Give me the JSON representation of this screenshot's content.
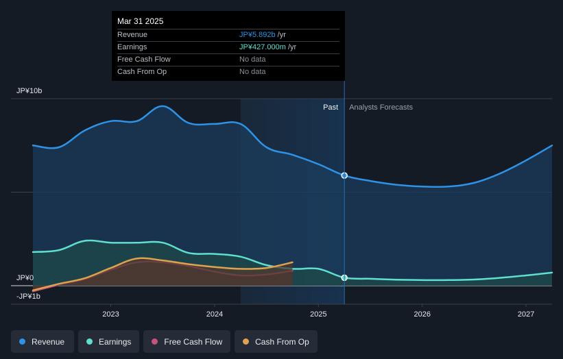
{
  "chart_data": {
    "type": "area",
    "title": "",
    "x_range": [
      2022.25,
      2027.25
    ],
    "ylim": [
      -1,
      10
    ],
    "y_tick_labels": [
      {
        "value": 10,
        "label": "JP¥10b"
      },
      {
        "value": 0,
        "label": "JP¥0"
      },
      {
        "value": -1,
        "label": "-JP¥1b"
      }
    ],
    "x_ticks": [
      {
        "value": 2023,
        "label": "2023"
      },
      {
        "value": 2024,
        "label": "2024"
      },
      {
        "value": 2025,
        "label": "2025"
      },
      {
        "value": 2026,
        "label": "2026"
      },
      {
        "value": 2027,
        "label": "2027"
      }
    ],
    "past_label": "Past",
    "forecast_label": "Analysts Forecasts",
    "highlight_start": 2024.25,
    "divider_x": 2025.25,
    "series": [
      {
        "name": "Revenue",
        "color": "#2e93e6",
        "fill": "#1b3c5c",
        "marker_at": 2025.25,
        "points": [
          [
            2022.25,
            7.5
          ],
          [
            2022.5,
            7.4
          ],
          [
            2022.75,
            8.3
          ],
          [
            2023.0,
            8.8
          ],
          [
            2023.25,
            8.8
          ],
          [
            2023.5,
            9.6
          ],
          [
            2023.75,
            8.7
          ],
          [
            2024.0,
            8.65
          ],
          [
            2024.25,
            8.65
          ],
          [
            2024.5,
            7.4
          ],
          [
            2024.75,
            7.0
          ],
          [
            2025.0,
            6.5
          ],
          [
            2025.25,
            5.892
          ],
          [
            2025.5,
            5.6
          ],
          [
            2025.75,
            5.4
          ],
          [
            2026.0,
            5.3
          ],
          [
            2026.25,
            5.3
          ],
          [
            2026.5,
            5.5
          ],
          [
            2026.75,
            6.0
          ],
          [
            2027.0,
            6.7
          ],
          [
            2027.25,
            7.5
          ]
        ]
      },
      {
        "name": "Earnings",
        "color": "#5fe0cf",
        "fill": "#1e4948",
        "marker_at": 2025.25,
        "points": [
          [
            2022.25,
            1.8
          ],
          [
            2022.5,
            1.9
          ],
          [
            2022.75,
            2.4
          ],
          [
            2023.0,
            2.3
          ],
          [
            2023.25,
            2.3
          ],
          [
            2023.5,
            2.3
          ],
          [
            2023.75,
            1.75
          ],
          [
            2024.0,
            1.7
          ],
          [
            2024.25,
            1.55
          ],
          [
            2024.5,
            1.1
          ],
          [
            2024.75,
            0.9
          ],
          [
            2025.0,
            0.9
          ],
          [
            2025.25,
            0.427
          ],
          [
            2025.5,
            0.37
          ],
          [
            2025.75,
            0.32
          ],
          [
            2026.0,
            0.3
          ],
          [
            2026.25,
            0.3
          ],
          [
            2026.5,
            0.33
          ],
          [
            2026.75,
            0.42
          ],
          [
            2027.0,
            0.55
          ],
          [
            2027.25,
            0.7
          ]
        ]
      },
      {
        "name": "Free Cash Flow",
        "color": "#c4537e",
        "fill": "#4a2a3c",
        "marker_at": null,
        "points": [
          [
            2022.25,
            -0.3
          ],
          [
            2022.5,
            0.05
          ],
          [
            2022.75,
            0.35
          ],
          [
            2023.0,
            0.85
          ],
          [
            2023.25,
            1.25
          ],
          [
            2023.5,
            1.25
          ],
          [
            2023.75,
            1.05
          ],
          [
            2024.0,
            0.75
          ],
          [
            2024.25,
            0.55
          ],
          [
            2024.5,
            0.6
          ],
          [
            2024.75,
            0.8
          ]
        ]
      },
      {
        "name": "Cash From Op",
        "color": "#e0a24e",
        "fill": "#4d3a2e",
        "marker_at": null,
        "points": [
          [
            2022.25,
            -0.25
          ],
          [
            2022.5,
            0.1
          ],
          [
            2022.75,
            0.4
          ],
          [
            2023.0,
            0.95
          ],
          [
            2023.25,
            1.45
          ],
          [
            2023.5,
            1.35
          ],
          [
            2023.75,
            1.15
          ],
          [
            2024.0,
            1.0
          ],
          [
            2024.25,
            0.9
          ],
          [
            2024.5,
            0.95
          ],
          [
            2024.75,
            1.25
          ]
        ]
      }
    ]
  },
  "tooltip": {
    "date": "Mar 31 2025",
    "rows": [
      {
        "label": "Revenue",
        "value": "JP¥5.892b",
        "unit": " /yr",
        "color": "#2e93e6"
      },
      {
        "label": "Earnings",
        "value": "JP¥427.000m",
        "unit": " /yr",
        "color": "#5fe0cf"
      },
      {
        "label": "Free Cash Flow",
        "value": "No data",
        "unit": "",
        "color": "#8a9098"
      },
      {
        "label": "Cash From Op",
        "value": "No data",
        "unit": "",
        "color": "#8a9098"
      }
    ]
  },
  "legend": [
    {
      "label": "Revenue",
      "color": "#2e93e6"
    },
    {
      "label": "Earnings",
      "color": "#5fe0cf"
    },
    {
      "label": "Free Cash Flow",
      "color": "#c4537e"
    },
    {
      "label": "Cash From Op",
      "color": "#e0a24e"
    }
  ]
}
